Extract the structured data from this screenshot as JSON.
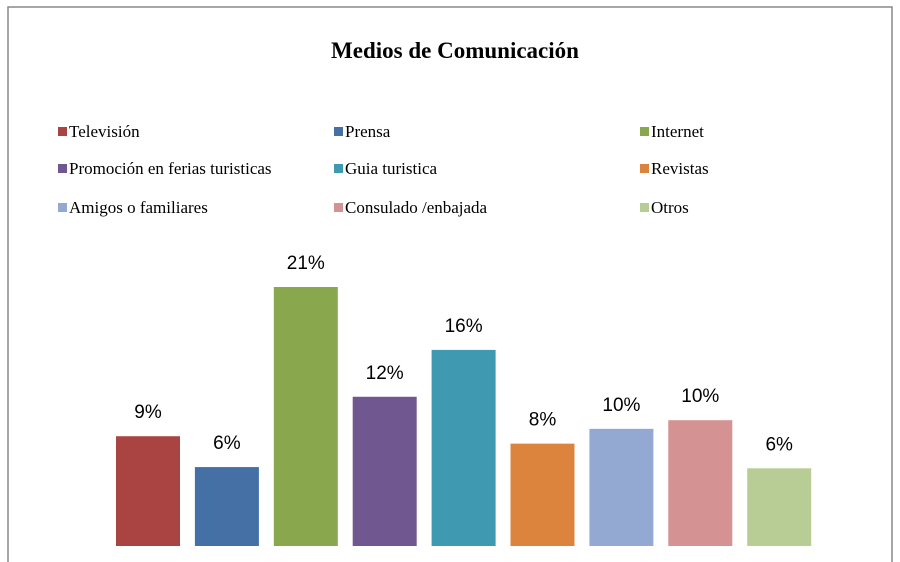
{
  "chart_data": {
    "type": "bar",
    "title": "Medios de Comunicación",
    "categories": [
      "Televisión",
      "Prensa",
      "Internet",
      "Promoción en ferias turisticas",
      "Guia turistica",
      "Revistas",
      "Amigos o familiares",
      "Consulado /enbajada",
      "Otros"
    ],
    "values": [
      8.9,
      6.4,
      21,
      12.1,
      15.9,
      8.3,
      9.5,
      10.2,
      6.3
    ],
    "value_labels": [
      "9%",
      "6%",
      "21%",
      "12%",
      "16%",
      "8%",
      "10%",
      "10%",
      "6%"
    ],
    "colors": [
      "#a94442",
      "#4470a6",
      "#89a74c",
      "#71578f",
      "#3f99b1",
      "#dc843d",
      "#94a9d2",
      "#d49292",
      "#b8cd96"
    ],
    "legend": "top"
  }
}
